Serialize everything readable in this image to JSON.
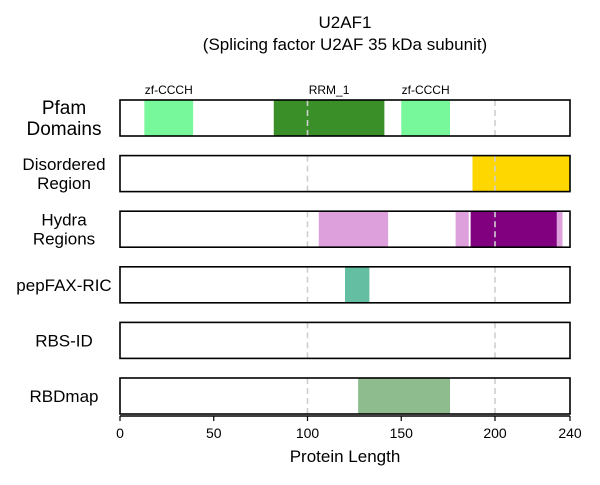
{
  "chart_data": {
    "type": "bar",
    "title": "U2AF1",
    "subtitle": "(Splicing factor U2AF 35 kDa subunit)",
    "xlabel": "Protein Length",
    "xlim": [
      0,
      240
    ],
    "xticks": [
      0,
      50,
      100,
      150,
      200,
      240
    ],
    "gridlines_x": [
      100,
      200
    ],
    "tracks": [
      {
        "label": "Pfam Domains",
        "segments": [
          {
            "start": 13,
            "end": 39,
            "color": "#77F89A",
            "label": "zf-CCCH"
          },
          {
            "start": 82,
            "end": 141,
            "color": "#3A8F28",
            "label": "RRM_1"
          },
          {
            "start": 150,
            "end": 176,
            "color": "#77F89A",
            "label": "zf-CCCH"
          }
        ]
      },
      {
        "label": "Disordered Region",
        "segments": [
          {
            "start": 188,
            "end": 240,
            "color": "#FFD700"
          }
        ]
      },
      {
        "label": "Hydra Regions",
        "segments": [
          {
            "start": 106,
            "end": 143,
            "color": "#DDA0DD"
          },
          {
            "start": 179,
            "end": 186,
            "color": "#DDA0DD"
          },
          {
            "start": 187,
            "end": 233,
            "color": "#800080"
          },
          {
            "start": 233,
            "end": 236,
            "color": "#DDA0DD"
          }
        ]
      },
      {
        "label": "pepFAX-RIC",
        "segments": [
          {
            "start": 120,
            "end": 133,
            "color": "#63BEA2"
          }
        ]
      },
      {
        "label": "RBS-ID",
        "segments": []
      },
      {
        "label": "RBDmap",
        "segments": [
          {
            "start": 127,
            "end": 176,
            "color": "#8FBC8F"
          }
        ]
      }
    ]
  }
}
